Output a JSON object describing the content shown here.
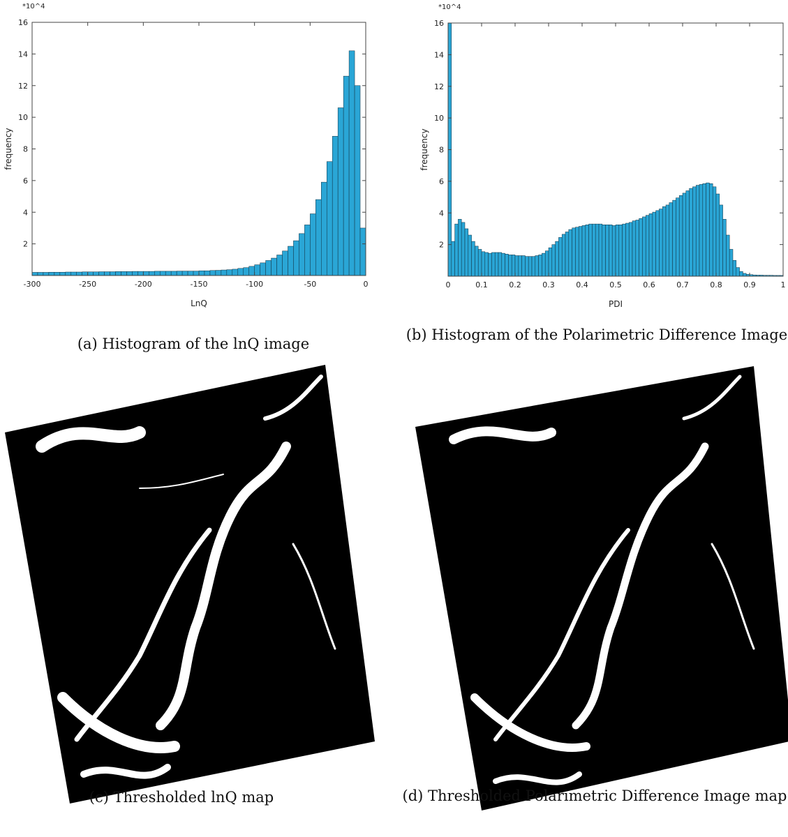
{
  "chart_data": [
    {
      "type": "histogram",
      "y_multiplier_label": "*10^4",
      "xlabel": "LnQ",
      "ylabel": "frequency",
      "caption": "(a) Histogram of the lnQ image",
      "color": "#2aa6d6",
      "xlim": [
        -300,
        0
      ],
      "ylim": [
        0,
        16
      ],
      "xticks": [
        -300,
        -250,
        -200,
        -150,
        -100,
        -50,
        0
      ],
      "yticks": [
        2,
        4,
        6,
        8,
        10,
        12,
        14,
        16
      ],
      "bins": [
        -300,
        -295,
        -290,
        -285,
        -280,
        -275,
        -270,
        -265,
        -260,
        -255,
        -250,
        -245,
        -240,
        -235,
        -230,
        -225,
        -220,
        -215,
        -210,
        -205,
        -200,
        -195,
        -190,
        -185,
        -180,
        -175,
        -170,
        -165,
        -160,
        -155,
        -150,
        -145,
        -140,
        -135,
        -130,
        -125,
        -120,
        -115,
        -110,
        -105,
        -100,
        -95,
        -90,
        -85,
        -80,
        -75,
        -70,
        -65,
        -60,
        -55,
        -50,
        -45,
        -40,
        -35,
        -30,
        -25,
        -20,
        -15,
        -10,
        -5,
        0
      ],
      "values": [
        0.2,
        0.2,
        0.2,
        0.21,
        0.21,
        0.21,
        0.22,
        0.22,
        0.22,
        0.23,
        0.23,
        0.23,
        0.24,
        0.24,
        0.24,
        0.25,
        0.25,
        0.25,
        0.26,
        0.26,
        0.26,
        0.26,
        0.27,
        0.27,
        0.27,
        0.27,
        0.28,
        0.28,
        0.28,
        0.28,
        0.3,
        0.3,
        0.32,
        0.33,
        0.35,
        0.37,
        0.4,
        0.45,
        0.5,
        0.58,
        0.68,
        0.8,
        0.95,
        1.1,
        1.3,
        1.55,
        1.85,
        2.2,
        2.65,
        3.2,
        3.9,
        4.8,
        5.9,
        7.2,
        8.8,
        10.6,
        12.6,
        14.2,
        12,
        3
      ]
    },
    {
      "type": "histogram",
      "y_multiplier_label": "*10^4",
      "xlabel": "PDI",
      "ylabel": "frequency",
      "caption": "(b) Histogram of the Polarimetric Difference Image",
      "color": "#2aa6d6",
      "xlim": [
        0,
        1
      ],
      "ylim": [
        0,
        16
      ],
      "xticks": [
        0,
        0.1,
        0.2,
        0.3,
        0.4,
        0.5,
        0.6,
        0.7,
        0.8,
        0.9,
        1
      ],
      "yticks": [
        2,
        4,
        6,
        8,
        10,
        12,
        14,
        16
      ],
      "bins": [
        0,
        0.01,
        0.02,
        0.03,
        0.04,
        0.05,
        0.06,
        0.07,
        0.08,
        0.09,
        0.1,
        0.11,
        0.12,
        0.13,
        0.14,
        0.15,
        0.16,
        0.17,
        0.18,
        0.19,
        0.2,
        0.21,
        0.22,
        0.23,
        0.24,
        0.25,
        0.26,
        0.27,
        0.28,
        0.29,
        0.3,
        0.31,
        0.32,
        0.33,
        0.34,
        0.35,
        0.36,
        0.37,
        0.38,
        0.39,
        0.4,
        0.41,
        0.42,
        0.43,
        0.44,
        0.45,
        0.46,
        0.47,
        0.48,
        0.49,
        0.5,
        0.51,
        0.52,
        0.53,
        0.54,
        0.55,
        0.56,
        0.57,
        0.58,
        0.59,
        0.6,
        0.61,
        0.62,
        0.63,
        0.64,
        0.65,
        0.66,
        0.67,
        0.68,
        0.69,
        0.7,
        0.71,
        0.72,
        0.73,
        0.74,
        0.75,
        0.76,
        0.77,
        0.78,
        0.79,
        0.8,
        0.81,
        0.82,
        0.83,
        0.84,
        0.85,
        0.86,
        0.87,
        0.88,
        0.89,
        0.9,
        0.91,
        0.92,
        0.93,
        0.94,
        0.95,
        0.96,
        0.97,
        0.98,
        0.99,
        1
      ],
      "values": [
        16,
        2.2,
        3.3,
        3.6,
        3.4,
        3.0,
        2.6,
        2.2,
        1.9,
        1.7,
        1.55,
        1.5,
        1.45,
        1.5,
        1.5,
        1.5,
        1.45,
        1.4,
        1.35,
        1.35,
        1.3,
        1.3,
        1.3,
        1.25,
        1.25,
        1.25,
        1.3,
        1.35,
        1.45,
        1.6,
        1.8,
        2.0,
        2.2,
        2.45,
        2.65,
        2.8,
        2.95,
        3.05,
        3.1,
        3.15,
        3.2,
        3.25,
        3.3,
        3.3,
        3.3,
        3.3,
        3.25,
        3.25,
        3.25,
        3.2,
        3.25,
        3.25,
        3.3,
        3.35,
        3.4,
        3.5,
        3.55,
        3.65,
        3.75,
        3.85,
        3.95,
        4.05,
        4.15,
        4.25,
        4.4,
        4.5,
        4.65,
        4.8,
        4.95,
        5.1,
        5.25,
        5.4,
        5.55,
        5.65,
        5.75,
        5.8,
        5.85,
        5.9,
        5.85,
        5.65,
        5.2,
        4.5,
        3.6,
        2.6,
        1.7,
        1.0,
        0.55,
        0.3,
        0.18,
        0.12,
        0.1,
        0.08,
        0.07,
        0.07,
        0.06,
        0.06,
        0.06,
        0.05,
        0.05,
        0.05
      ]
    }
  ],
  "panels": [
    {
      "caption": "(c) Thresholded lnQ map"
    },
    {
      "caption": "(d) Thresholded Polarimetric Difference Image map"
    }
  ]
}
